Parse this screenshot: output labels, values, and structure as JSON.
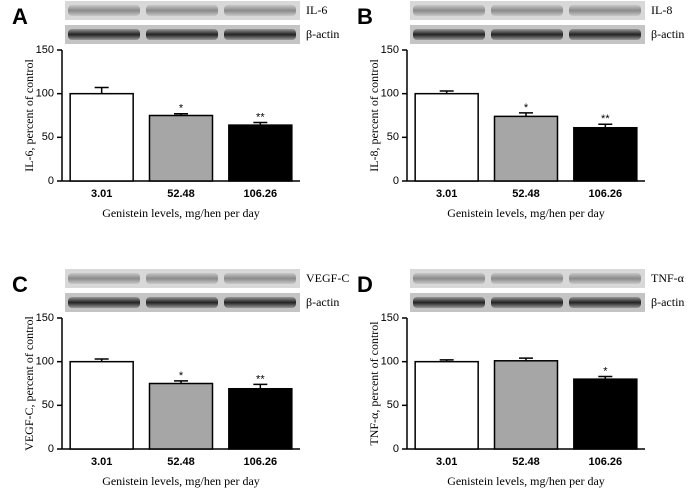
{
  "chart_data": [
    {
      "type": "bar",
      "panel_label": "A",
      "blot_labels": [
        "IL-6",
        "β-actin"
      ],
      "ylabel": "IL-6, percent of control",
      "xlabel": "Genistein levels, mg/hen per day",
      "categories": [
        "3.01",
        "52.48",
        "106.26"
      ],
      "values": [
        100,
        75,
        64
      ],
      "errors": [
        7,
        2,
        3
      ],
      "annotations": [
        null,
        "*",
        "**"
      ],
      "colors": [
        "#ffffff",
        "#a6a6a6",
        "#000000"
      ],
      "ylim": [
        0,
        150
      ],
      "yticks": [
        0,
        50,
        100,
        150
      ]
    },
    {
      "type": "bar",
      "panel_label": "B",
      "blot_labels": [
        "IL-8",
        "β-actin"
      ],
      "ylabel": "IL-8, percent of control",
      "xlabel": "Genistein levels, mg/hen per day",
      "categories": [
        "3.01",
        "52.48",
        "106.26"
      ],
      "values": [
        100,
        74,
        61
      ],
      "errors": [
        3,
        4,
        4
      ],
      "annotations": [
        null,
        "*",
        "**"
      ],
      "colors": [
        "#ffffff",
        "#a6a6a6",
        "#000000"
      ],
      "ylim": [
        0,
        150
      ],
      "yticks": [
        0,
        50,
        100,
        150
      ]
    },
    {
      "type": "bar",
      "panel_label": "C",
      "blot_labels": [
        "VEGF-C",
        "β-actin"
      ],
      "ylabel": "VEGF-C, percent of control",
      "xlabel": "Genistein levels, mg/hen per day",
      "categories": [
        "3.01",
        "52.48",
        "106.26"
      ],
      "values": [
        100,
        75,
        69
      ],
      "errors": [
        3,
        3,
        5
      ],
      "annotations": [
        null,
        "*",
        "**"
      ],
      "colors": [
        "#ffffff",
        "#a6a6a6",
        "#000000"
      ],
      "ylim": [
        0,
        150
      ],
      "yticks": [
        0,
        50,
        100,
        150
      ]
    },
    {
      "type": "bar",
      "panel_label": "D",
      "blot_labels": [
        "TNF-α",
        "β-actin"
      ],
      "ylabel": "TNF-α, percent of control",
      "xlabel": "Genistein levels, mg/hen per day",
      "categories": [
        "3.01",
        "52.48",
        "106.26"
      ],
      "values": [
        100,
        101,
        80
      ],
      "errors": [
        2,
        3,
        3
      ],
      "annotations": [
        null,
        null,
        "*"
      ],
      "colors": [
        "#ffffff",
        "#a6a6a6",
        "#000000"
      ],
      "ylim": [
        0,
        150
      ],
      "yticks": [
        0,
        50,
        100,
        150
      ]
    }
  ]
}
